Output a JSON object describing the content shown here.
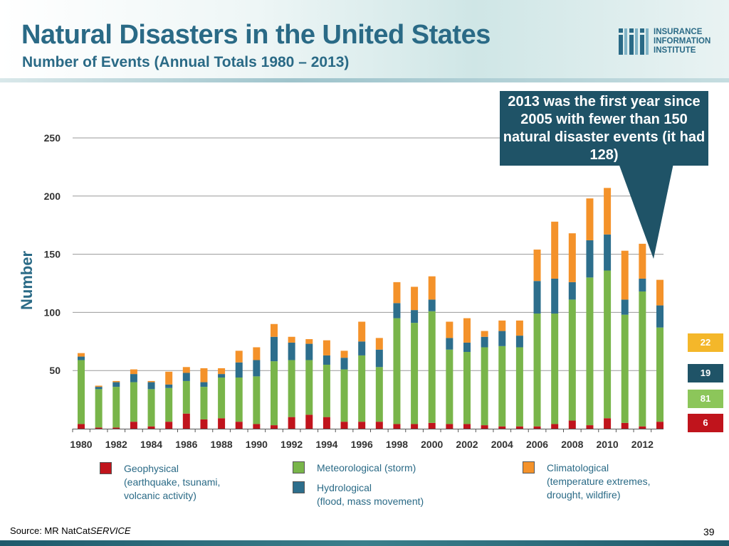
{
  "header": {
    "title": "Natural Disasters in the United States",
    "subtitle": "Number of Events (Annual Totals 1980 – 2013)"
  },
  "logo": {
    "lines": [
      "INSURANCE",
      "INFORMATION",
      "INSTITUTE"
    ],
    "icon": "iii-logo-icon"
  },
  "callout": {
    "text": "2013 was the first year since 2005 with fewer than 150 natural disaster events (it had 128)"
  },
  "side_values": {
    "climatological": "22",
    "hydrological": "19",
    "meteorological": "81",
    "geophysical": "6"
  },
  "legend": {
    "geophysical": {
      "name": "Geophysical",
      "line2": "(earthquake, tsunami,",
      "line3": "volcanic activity)"
    },
    "meteorological": {
      "name": "Meteorological (storm)"
    },
    "hydrological": {
      "name": "Hydrological",
      "line2": "(flood, mass movement)"
    },
    "climatological": {
      "name": "Climatological",
      "line2": "(temperature extremes,",
      "line3": "drought, wildfire)"
    }
  },
  "footer": {
    "source_prefix": "Source: MR NatCat",
    "source_suffix": "SERVICE",
    "page_number": "39"
  },
  "colors": {
    "title": "#2a6a86",
    "geophysical": "#c0141c",
    "meteorological": "#79b54a",
    "hydrological": "#2d6e8c",
    "climatological": "#f4922a",
    "callout": "#1f5367"
  },
  "chart_data": {
    "type": "bar",
    "stacked": true,
    "title": "Natural Disasters in the United States",
    "ylabel": "Number",
    "xlabel": "",
    "ylim": [
      0,
      250
    ],
    "yticks": [
      50,
      100,
      150,
      200,
      250
    ],
    "x_tick_labels": [
      "1980",
      "1982",
      "1984",
      "1986",
      "1988",
      "1990",
      "1992",
      "1994",
      "1996",
      "1998",
      "2000",
      "2002",
      "2004",
      "2006",
      "2008",
      "2010",
      "2012"
    ],
    "categories": [
      "1980",
      "1981",
      "1982",
      "1983",
      "1984",
      "1985",
      "1986",
      "1987",
      "1988",
      "1989",
      "1990",
      "1991",
      "1992",
      "1993",
      "1994",
      "1995",
      "1996",
      "1997",
      "1998",
      "1999",
      "2000",
      "2001",
      "2002",
      "2003",
      "2004",
      "2005",
      "2006",
      "2007",
      "2008",
      "2009",
      "2010",
      "2011",
      "2012",
      "2013"
    ],
    "series": [
      {
        "name": "Geophysical",
        "key": "geophysical",
        "values": [
          4,
          1,
          1,
          6,
          2,
          6,
          13,
          8,
          9,
          6,
          4,
          3,
          10,
          12,
          10,
          6,
          6,
          6,
          4,
          4,
          5,
          4,
          4,
          3,
          2,
          2,
          2,
          4,
          7,
          3,
          9,
          5,
          2,
          6
        ]
      },
      {
        "name": "Meteorological (storm)",
        "key": "meteorological",
        "values": [
          55,
          33,
          35,
          34,
          32,
          29,
          28,
          28,
          35,
          38,
          41,
          55,
          49,
          47,
          45,
          45,
          57,
          47,
          91,
          87,
          96,
          64,
          62,
          67,
          69,
          68,
          97,
          95,
          104,
          127,
          127,
          93,
          116,
          81
        ]
      },
      {
        "name": "Hydrological",
        "key": "hydrological",
        "values": [
          3,
          2,
          4,
          7,
          6,
          3,
          7,
          4,
          3,
          13,
          14,
          21,
          15,
          14,
          8,
          10,
          12,
          15,
          13,
          11,
          10,
          10,
          8,
          9,
          13,
          10,
          28,
          30,
          15,
          32,
          31,
          13,
          11,
          19
        ]
      },
      {
        "name": "Climatological",
        "key": "climatological",
        "values": [
          3,
          1,
          1,
          4,
          1,
          11,
          5,
          12,
          5,
          10,
          11,
          11,
          5,
          4,
          13,
          6,
          17,
          10,
          18,
          20,
          20,
          14,
          21,
          5,
          9,
          13,
          27,
          49,
          42,
          36,
          40,
          42,
          30,
          22
        ]
      }
    ],
    "annotation": "2013 was the first year since 2005 with fewer than 150 natural disaster events (it had 128)"
  }
}
